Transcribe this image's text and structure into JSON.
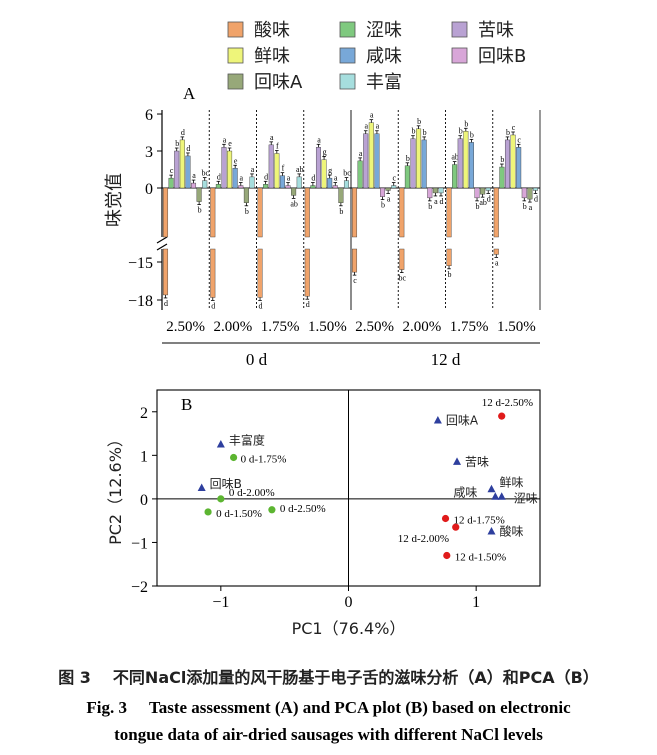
{
  "figure": {
    "caption_cn_label": "图 3",
    "caption_cn": "不同NaCl添加量的风干肠基于电子舌的滋味分析（A）和PCA（B）",
    "caption_en_label": "Fig. 3",
    "caption_en_line1": "Taste assessment (A) and PCA plot (B) based on electronic",
    "caption_en_line2": "tongue data of air-dried sausages with different NaCl levels"
  },
  "colors": {
    "酸味": "#f0a36a",
    "涩味": "#7fc97f",
    "苦味": "#b9a2d3",
    "鲜味": "#eef57a",
    "咸味": "#78a8d8",
    "回味B": "#d8a6d8",
    "回味A": "#97a879",
    "丰富": "#a6dede",
    "series_12d": "#e01b1b",
    "series_0d": "#5cb531",
    "loadings": "#2e3f9e"
  },
  "chart_data": [
    {
      "type": "bar",
      "panel_label": "A",
      "ylabel": "味觉值",
      "yticks": [
        6,
        3,
        0,
        -15,
        -18
      ],
      "y_axis_break": [
        -2.6,
        -13.4
      ],
      "legend_position": "top",
      "series_order": [
        "酸味",
        "涩味",
        "苦味",
        "鲜味",
        "咸味",
        "回味B",
        "回味A",
        "丰富"
      ],
      "bar_order": [
        "酸味",
        "涩味",
        "苦味",
        "鲜味",
        "咸味",
        "回味B",
        "回味A",
        "丰富"
      ],
      "categories": [
        "2.50%",
        "2.00%",
        "1.75%",
        "1.50%",
        "2.50%",
        "2.00%",
        "1.75%",
        "1.50%"
      ],
      "groups": [
        {
          "label": "0 d",
          "categories": [
            0,
            1,
            2,
            3
          ]
        },
        {
          "label": "12 d",
          "categories": [
            4,
            5,
            6,
            7
          ]
        }
      ],
      "series": [
        {
          "name": "酸味",
          "values": [
            -17.6,
            -17.8,
            -17.8,
            -17.7,
            -15.8,
            -15.6,
            -15.3,
            -14.4
          ],
          "letters": [
            "d",
            "d",
            "d",
            "d",
            "c",
            "bc",
            "b",
            "a"
          ]
        },
        {
          "name": "涩味",
          "values": [
            0.8,
            0.3,
            0.3,
            0.2,
            2.2,
            1.8,
            1.9,
            1.7
          ],
          "letters": [
            "c",
            "d",
            "d",
            "d",
            "a",
            "b",
            "ab",
            "b"
          ]
        },
        {
          "name": "苦味",
          "values": [
            3.0,
            3.3,
            3.5,
            3.3,
            4.4,
            4.0,
            4.0,
            3.9
          ],
          "letters": [
            "b",
            "a",
            "a",
            "a",
            "a",
            "b",
            "b",
            "b"
          ]
        },
        {
          "name": "鲜味",
          "values": [
            3.9,
            3.0,
            2.8,
            2.3,
            5.3,
            4.8,
            4.6,
            4.3
          ],
          "letters": [
            "d",
            "e",
            "f",
            "g",
            "a",
            "b",
            "b",
            "c"
          ]
        },
        {
          "name": "咸味",
          "values": [
            2.6,
            1.6,
            1.0,
            0.8,
            4.4,
            3.9,
            3.7,
            3.3
          ],
          "letters": [
            "d",
            "e",
            "f",
            "g",
            "a",
            "b",
            "b",
            "c"
          ]
        },
        {
          "name": "回味B",
          "values": [
            0.4,
            0.2,
            0.2,
            0.2,
            -0.7,
            -0.8,
            -0.8,
            -0.8
          ],
          "letters": [
            "a",
            "a",
            "a",
            "a",
            "b",
            "b",
            "b",
            "b"
          ]
        },
        {
          "name": "回味A",
          "values": [
            -1.1,
            -1.2,
            -0.6,
            -1.2,
            -0.2,
            -0.4,
            -0.5,
            -0.9
          ],
          "letters": [
            "b",
            "b",
            "ab",
            "b",
            "a",
            "a",
            "ab",
            "a"
          ]
        },
        {
          "name": "丰富",
          "values": [
            0.6,
            0.9,
            0.9,
            0.6,
            0.2,
            -0.4,
            -0.2,
            -0.2
          ],
          "letters": [
            "bc",
            "a",
            "ab",
            "bc",
            "c",
            "d",
            "d",
            "d"
          ]
        }
      ]
    },
    {
      "type": "scatter",
      "panel_label": "B",
      "xlabel": "PC1（76.4%）",
      "ylabel": "PC2（12.6%）",
      "xlim": [
        -1.5,
        1.5
      ],
      "ylim": [
        -2,
        2.5
      ],
      "xticks": [
        -1,
        0,
        1
      ],
      "yticks": [
        -2,
        -1,
        0,
        1,
        2
      ],
      "scores_12d": [
        {
          "label": "12 d-2.50%",
          "x": 1.2,
          "y": 1.9
        },
        {
          "label": "12 d-1.75%",
          "x": 0.76,
          "y": -0.45
        },
        {
          "label": "12 d-2.00%",
          "x": 0.84,
          "y": -0.65
        },
        {
          "label": "12 d-1.50%",
          "x": 0.77,
          "y": -1.3
        }
      ],
      "scores_0d": [
        {
          "label": "0 d-1.75%",
          "x": -0.9,
          "y": 0.95
        },
        {
          "label": "0 d-2.00%",
          "x": -1.0,
          "y": 0.0
        },
        {
          "label": "0 d-1.50%",
          "x": -1.1,
          "y": -0.3
        },
        {
          "label": "0 d-2.50%",
          "x": -0.6,
          "y": -0.25
        }
      ],
      "loadings": [
        {
          "label": "回味A",
          "x": 0.7,
          "y": 1.8
        },
        {
          "label": "苦味",
          "x": 0.85,
          "y": 0.85
        },
        {
          "label": "鲜味",
          "x": 1.12,
          "y": 0.22
        },
        {
          "label": "咸味",
          "x": 1.15,
          "y": 0.05
        },
        {
          "label": "涩味",
          "x": 1.2,
          "y": 0.05
        },
        {
          "label": "酸味",
          "x": 1.12,
          "y": -0.75
        },
        {
          "label": "丰富度",
          "x": -1.0,
          "y": 1.25
        },
        {
          "label": "回味B",
          "x": -1.15,
          "y": 0.25
        }
      ]
    }
  ]
}
